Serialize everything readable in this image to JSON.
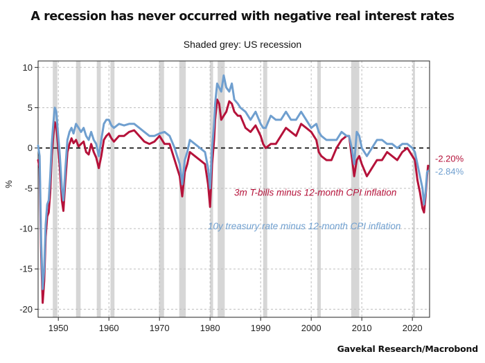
{
  "chart_data": {
    "type": "line",
    "title": "A recession has never occurred with negative real interest rates",
    "subtitle": "Shaded grey: US recession",
    "ylabel": "%",
    "xlabel": "",
    "source": "Gavekal Research/Macrobond",
    "xlim": [
      1946,
      2023.4
    ],
    "ylim": [
      -21,
      10.8
    ],
    "y_ticks": [
      10,
      5,
      0,
      -5,
      -10,
      -15,
      -20
    ],
    "x_ticks": [
      1950,
      1960,
      1970,
      1980,
      1990,
      2000,
      2010,
      2020
    ],
    "grid": true,
    "zero_line": "dashed",
    "recessions": [
      [
        1948.9,
        1949.8
      ],
      [
        1953.5,
        1954.4
      ],
      [
        1957.6,
        1958.4
      ],
      [
        1960.3,
        1961.1
      ],
      [
        1969.9,
        1970.9
      ],
      [
        1973.9,
        1975.2
      ],
      [
        1980.0,
        1980.6
      ],
      [
        1981.5,
        1982.9
      ],
      [
        1990.5,
        1991.3
      ],
      [
        2001.2,
        2001.9
      ],
      [
        2007.9,
        2009.5
      ],
      [
        2020.1,
        2020.4
      ]
    ],
    "series": [
      {
        "name": "3m T-bills minus 12-month CPI inflation",
        "color": "#b5123a",
        "end_label": "-2.20%",
        "x": [
          1946.0,
          1946.3,
          1946.6,
          1946.9,
          1947.2,
          1947.5,
          1947.8,
          1948.1,
          1948.4,
          1948.7,
          1949.0,
          1949.3,
          1949.6,
          1949.9,
          1950.3,
          1950.7,
          1951.0,
          1951.4,
          1951.8,
          1952.2,
          1952.6,
          1953.0,
          1953.5,
          1954.0,
          1954.5,
          1955.0,
          1955.5,
          1956.0,
          1956.5,
          1957.0,
          1957.5,
          1958.0,
          1958.5,
          1959.0,
          1959.5,
          1960.0,
          1960.5,
          1961.0,
          1962.0,
          1963.0,
          1964.0,
          1965.0,
          1966.0,
          1967.0,
          1968.0,
          1969.0,
          1970.0,
          1971.0,
          1972.0,
          1973.0,
          1973.5,
          1974.0,
          1974.5,
          1975.0,
          1975.5,
          1976.0,
          1977.0,
          1978.0,
          1979.0,
          1979.6,
          1980.0,
          1980.4,
          1980.8,
          1981.0,
          1981.4,
          1981.8,
          1982.2,
          1982.7,
          1983.2,
          1983.8,
          1984.3,
          1984.8,
          1985.5,
          1986.0,
          1987.0,
          1988.0,
          1989.0,
          1990.0,
          1990.5,
          1991.0,
          1992.0,
          1993.0,
          1994.0,
          1995.0,
          1996.0,
          1997.0,
          1998.0,
          1999.0,
          2000.0,
          2001.0,
          2001.5,
          2002.0,
          2003.0,
          2004.0,
          2005.0,
          2006.0,
          2007.0,
          2007.5,
          2008.0,
          2008.5,
          2009.0,
          2009.5,
          2010.0,
          2011.0,
          2012.0,
          2013.0,
          2014.0,
          2015.0,
          2016.0,
          2017.0,
          2018.0,
          2019.0,
          2020.0,
          2020.5,
          2021.0,
          2021.5,
          2022.0,
          2022.3,
          2022.6,
          2022.9,
          2023.1
        ],
        "y": [
          -1.5,
          -2.5,
          -13,
          -19.2,
          -16.5,
          -11,
          -8.5,
          -8,
          -5.5,
          -1,
          1.5,
          3.2,
          2.6,
          0.5,
          -2.5,
          -6.5,
          -7.8,
          -4,
          -0.5,
          0.5,
          1.2,
          0.6,
          1.0,
          0.2,
          0.5,
          0.8,
          -0.5,
          -0.8,
          0.5,
          -0.5,
          -1.2,
          -2.5,
          -1.0,
          1.0,
          1.5,
          1.8,
          1.2,
          0.8,
          1.5,
          1.5,
          2.0,
          2.2,
          1.5,
          0.8,
          0.5,
          0.8,
          1.5,
          0.5,
          0.5,
          -1.5,
          -2.5,
          -3.5,
          -6.0,
          -3.0,
          -2.0,
          -0.5,
          -1.0,
          -1.5,
          -2.0,
          -4.5,
          -7.3,
          -2.0,
          1.0,
          3.5,
          6.0,
          5.5,
          3.5,
          4.0,
          4.5,
          5.8,
          5.5,
          4.5,
          4.0,
          4.0,
          2.5,
          2.0,
          2.8,
          1.5,
          0.5,
          0.0,
          0.5,
          0.5,
          1.5,
          2.5,
          2.0,
          1.5,
          3.0,
          2.5,
          2.0,
          1.0,
          -0.5,
          -1.0,
          -1.5,
          -1.5,
          0.0,
          1.0,
          1.5,
          1.5,
          -1.0,
          -3.5,
          -1.5,
          -1.0,
          -2.0,
          -3.5,
          -2.5,
          -1.5,
          -1.5,
          -0.5,
          -1.0,
          -1.5,
          -0.5,
          0.0,
          -1.0,
          -1.5,
          -4.0,
          -5.5,
          -7.5,
          -8.0,
          -6.0,
          -3.5,
          -2.2
        ]
      },
      {
        "name": "10y treasury rate minus 12-month CPI inflation",
        "color": "#6f9fcf",
        "end_label": "-2.84%",
        "x": [
          1946.0,
          1946.3,
          1946.6,
          1946.9,
          1947.2,
          1947.5,
          1947.8,
          1948.1,
          1948.4,
          1948.7,
          1949.0,
          1949.3,
          1949.6,
          1949.9,
          1950.3,
          1950.7,
          1951.0,
          1951.4,
          1951.8,
          1952.2,
          1952.6,
          1953.0,
          1953.5,
          1954.0,
          1954.5,
          1955.0,
          1955.5,
          1956.0,
          1956.5,
          1957.0,
          1957.5,
          1958.0,
          1958.5,
          1959.0,
          1959.5,
          1960.0,
          1960.5,
          1961.0,
          1962.0,
          1963.0,
          1964.0,
          1965.0,
          1966.0,
          1967.0,
          1968.0,
          1969.0,
          1970.0,
          1971.0,
          1972.0,
          1973.0,
          1973.5,
          1974.0,
          1974.5,
          1975.0,
          1975.5,
          1976.0,
          1977.0,
          1978.0,
          1979.0,
          1979.6,
          1980.0,
          1980.4,
          1980.8,
          1981.0,
          1981.4,
          1981.8,
          1982.2,
          1982.7,
          1983.2,
          1983.8,
          1984.3,
          1984.8,
          1985.5,
          1986.0,
          1987.0,
          1988.0,
          1989.0,
          1990.0,
          1990.5,
          1991.0,
          1992.0,
          1993.0,
          1994.0,
          1995.0,
          1996.0,
          1997.0,
          1998.0,
          1999.0,
          2000.0,
          2001.0,
          2001.5,
          2002.0,
          2003.0,
          2004.0,
          2005.0,
          2006.0,
          2007.0,
          2007.5,
          2008.0,
          2008.5,
          2009.0,
          2009.5,
          2010.0,
          2011.0,
          2012.0,
          2013.0,
          2014.0,
          2015.0,
          2016.0,
          2017.0,
          2018.0,
          2019.0,
          2020.0,
          2020.5,
          2021.0,
          2021.5,
          2022.0,
          2022.3,
          2022.6,
          2022.9,
          2023.1
        ],
        "y": [
          0.3,
          -1.0,
          -11.5,
          -17.5,
          -15.0,
          -9.5,
          -7.0,
          -6.5,
          -3.5,
          0.5,
          3.0,
          5.0,
          4.5,
          2.0,
          -1.0,
          -5.0,
          -6.5,
          -2.5,
          1.0,
          2.0,
          2.5,
          1.8,
          3.0,
          2.5,
          2.0,
          2.5,
          1.5,
          1.0,
          2.0,
          1.0,
          0.5,
          -1.0,
          1.0,
          3.0,
          3.5,
          3.5,
          2.8,
          2.5,
          3.0,
          2.8,
          3.0,
          3.0,
          2.5,
          2.0,
          1.5,
          1.5,
          1.8,
          2.0,
          1.5,
          0.0,
          -1.0,
          -2.0,
          -4.5,
          -1.5,
          -0.5,
          1.0,
          0.5,
          0.0,
          -0.5,
          -2.5,
          -5.0,
          0.0,
          3.0,
          5.5,
          8.0,
          7.5,
          7.0,
          9.0,
          7.5,
          7.0,
          8.0,
          6.0,
          5.5,
          5.0,
          4.5,
          3.5,
          4.5,
          3.0,
          2.5,
          2.5,
          4.0,
          3.5,
          3.5,
          4.5,
          3.5,
          3.5,
          4.5,
          3.5,
          2.5,
          3.0,
          2.0,
          1.5,
          1.0,
          1.0,
          1.0,
          2.0,
          1.5,
          1.5,
          0.0,
          -2.0,
          2.0,
          1.5,
          0.0,
          -1.0,
          0.0,
          1.0,
          1.0,
          0.5,
          0.5,
          0.0,
          0.5,
          0.5,
          0.0,
          -0.5,
          -2.0,
          -3.5,
          -5.0,
          -7.0,
          -5.5,
          -3.0,
          -2.84
        ]
      }
    ],
    "annotations": [
      {
        "text": "3m T-bills minus 12-month CPI inflation",
        "series": 0
      },
      {
        "text": "10y treasury rate minus 12-month CPI inflation",
        "series": 1
      }
    ]
  }
}
